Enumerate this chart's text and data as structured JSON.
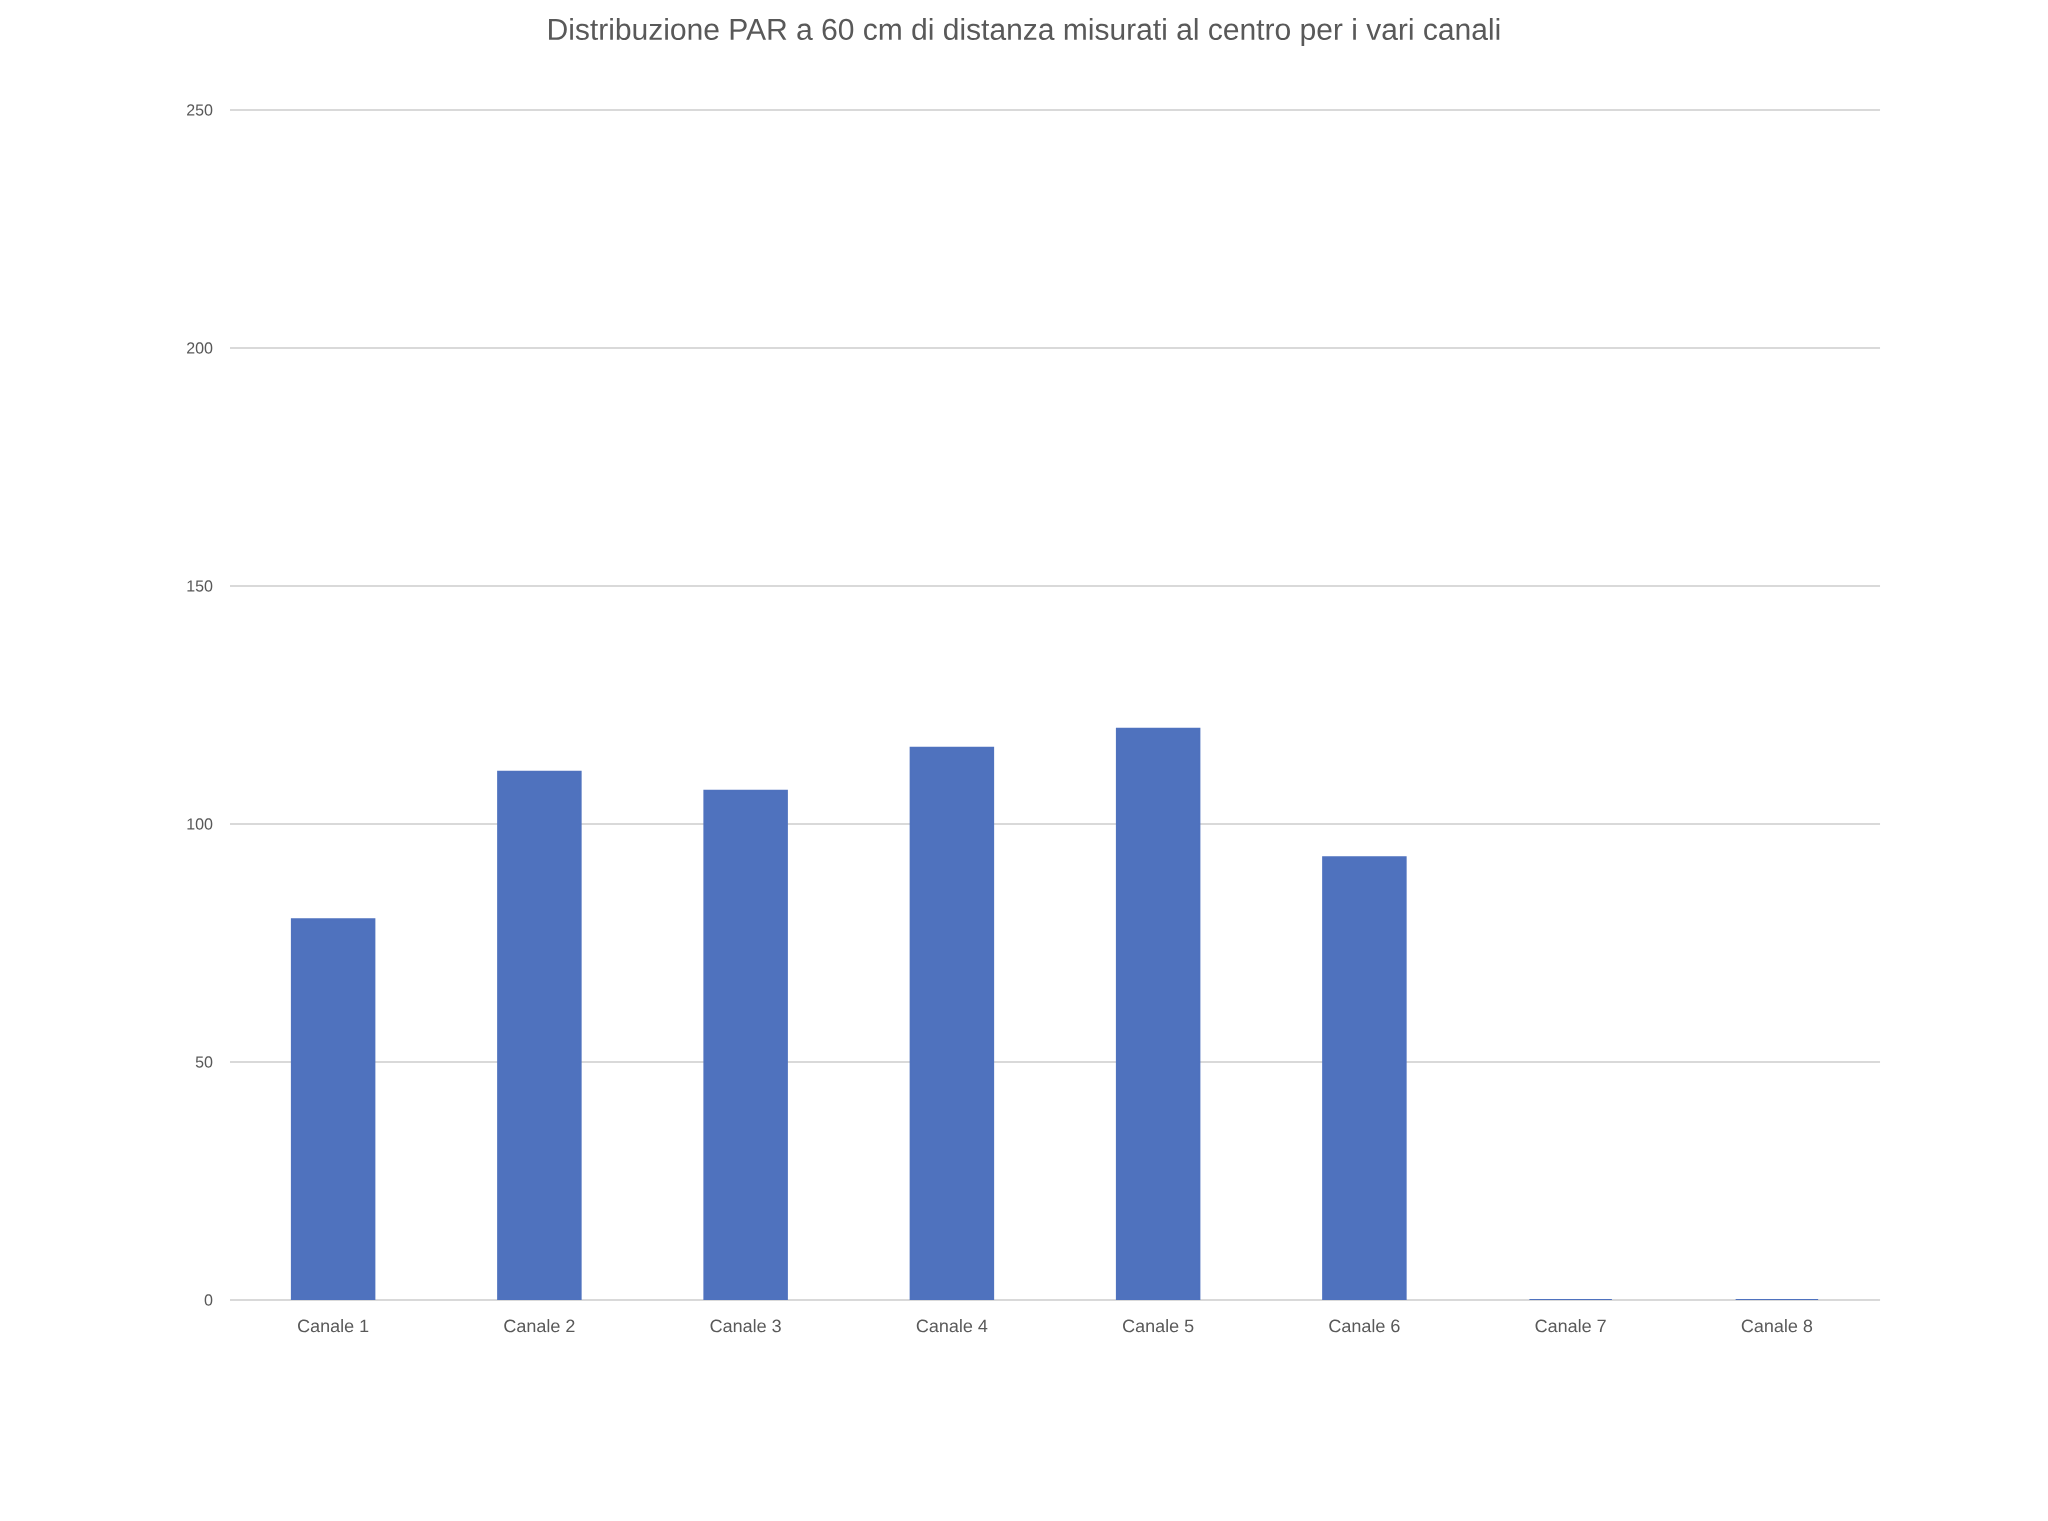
{
  "chart_data": {
    "type": "bar",
    "title": "Distribuzione PAR a 60 cm di distanza misurati al centro per i vari canali",
    "categories": [
      "Canale 1",
      "Canale 2",
      "Canale 3",
      "Canale 4",
      "Canale 5",
      "Canale 6",
      "Canale 7",
      "Canale 8"
    ],
    "values": [
      80,
      111,
      107,
      116,
      120,
      93,
      0,
      0
    ],
    "color": "#4f72be",
    "ylim": [
      0,
      250
    ],
    "yticks": [
      0,
      50,
      100,
      150,
      200,
      250
    ],
    "grid": "y"
  }
}
